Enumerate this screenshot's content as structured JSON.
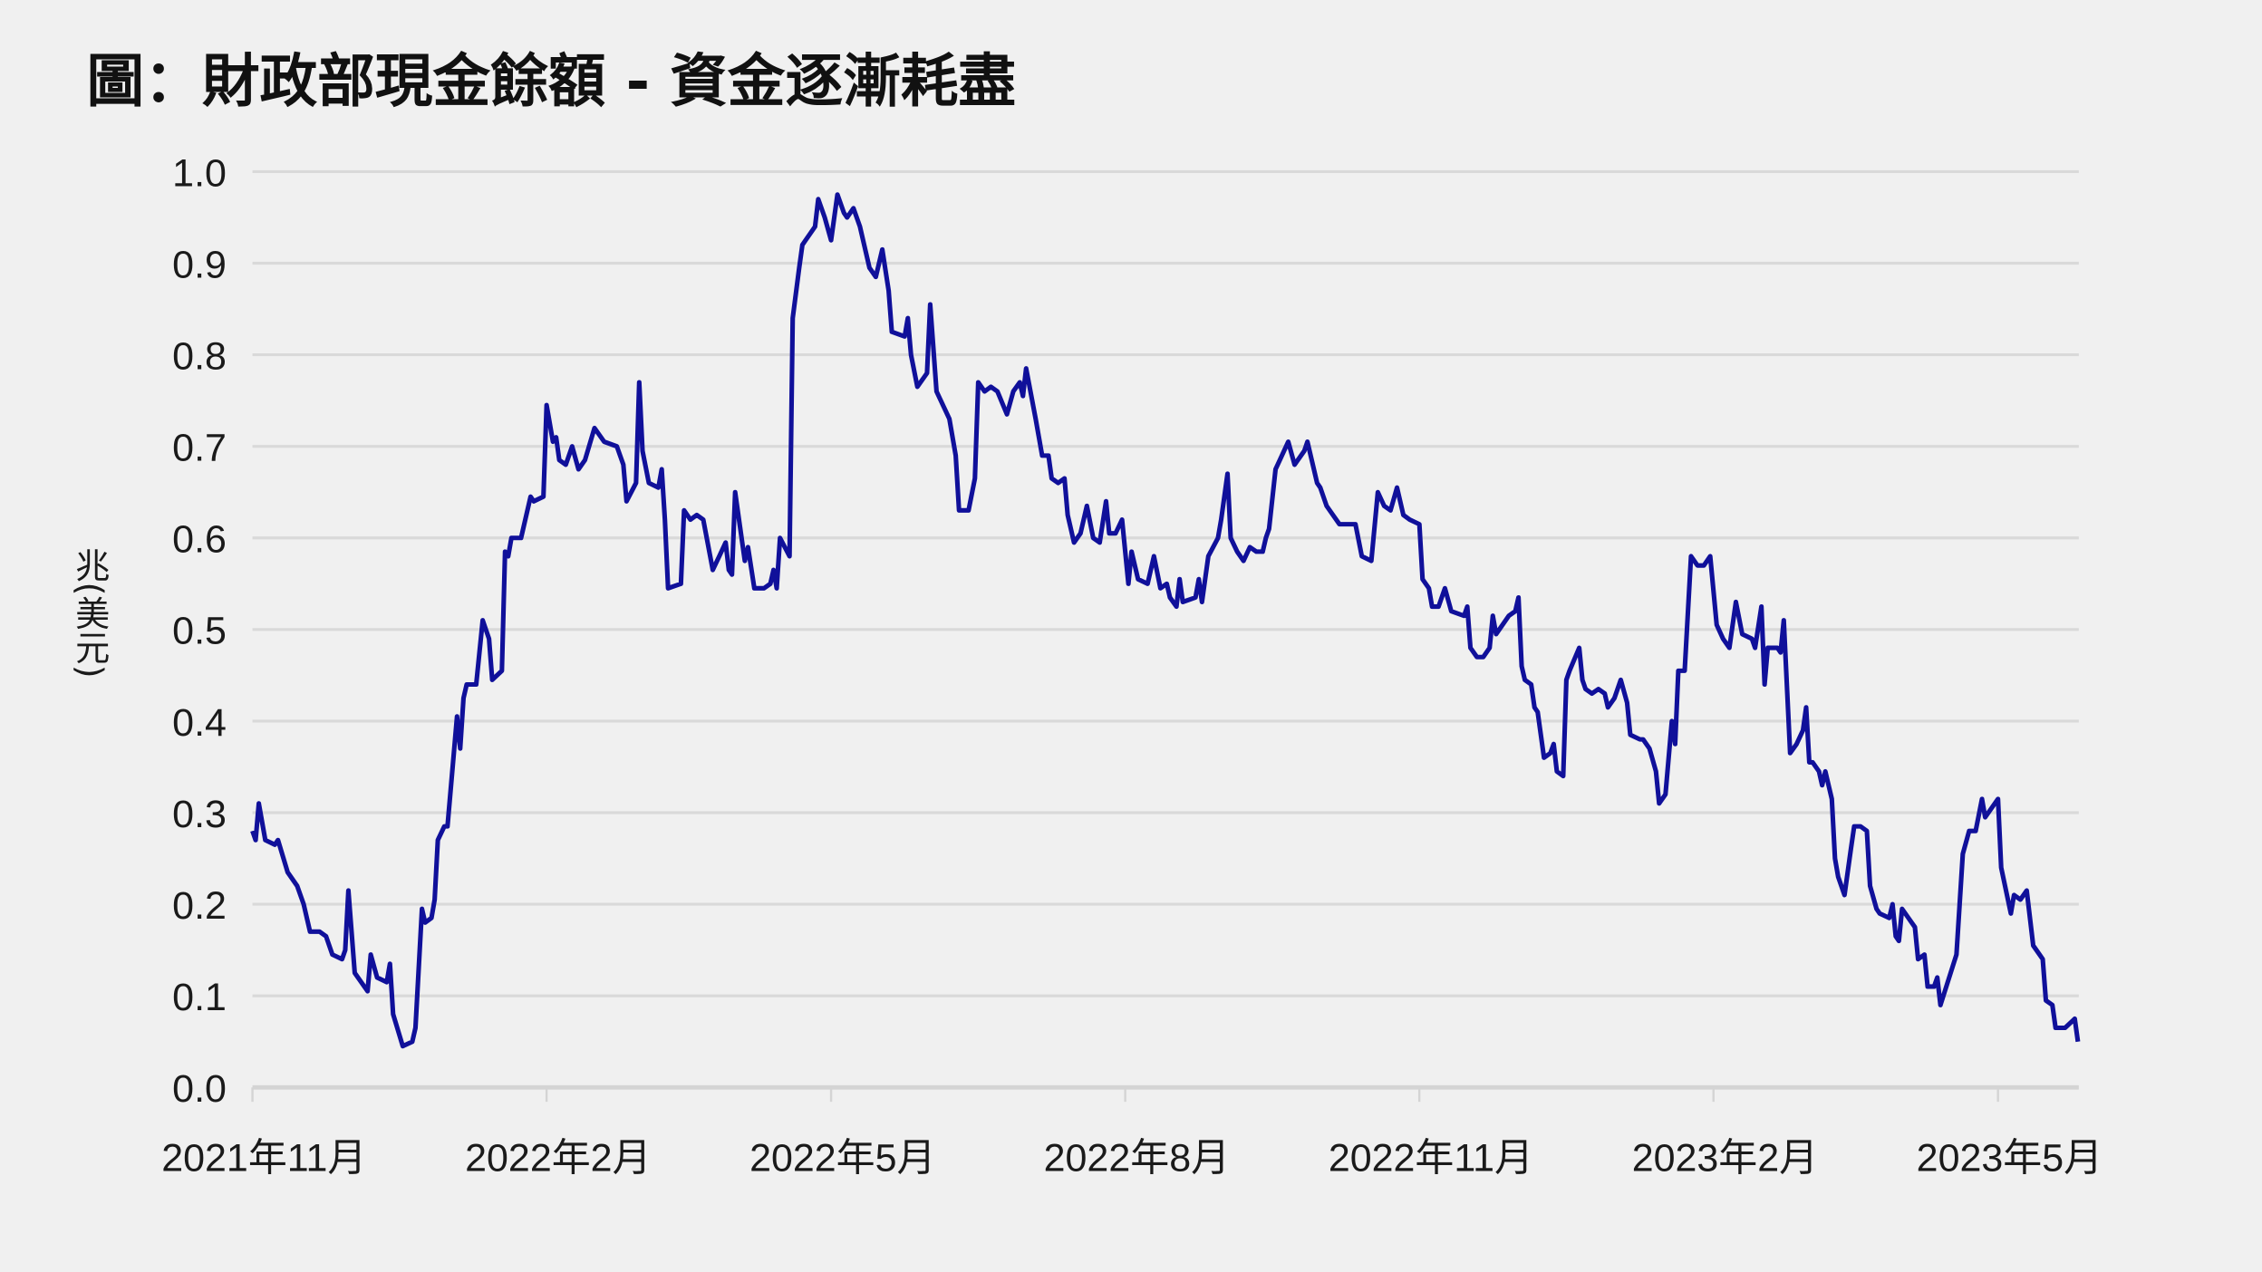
{
  "chart_data": {
    "type": "line",
    "title": "圖：財政部現金餘額 - 資金逐漸耗盡",
    "xlabel": "",
    "ylabel": "兆(美元)",
    "ylim": [
      0,
      1.0
    ],
    "yticks": [
      "0.0",
      "0.1",
      "0.2",
      "0.3",
      "0.4",
      "0.5",
      "0.6",
      "0.7",
      "0.8",
      "0.9",
      "1.0"
    ],
    "xlim": [
      "2021-11-01",
      "2023-05-26"
    ],
    "xticks": [
      {
        "date": "2021-11-01",
        "label": "2021年11月"
      },
      {
        "date": "2022-02-01",
        "label": "2022年2月"
      },
      {
        "date": "2022-05-01",
        "label": "2022年5月"
      },
      {
        "date": "2022-08-01",
        "label": "2022年8月"
      },
      {
        "date": "2022-11-01",
        "label": "2022年11月"
      },
      {
        "date": "2023-02-01",
        "label": "2023年2月"
      },
      {
        "date": "2023-05-01",
        "label": "2023年5月"
      }
    ],
    "grid": "horizontal",
    "legend": "none",
    "colors": {
      "line": "#10109a",
      "grid": "#d9d9d9",
      "axis": "#d4d4d4",
      "background": "#f0f0f0"
    },
    "series": [
      {
        "x": [
          "2021-11-01",
          "2021-11-02",
          "2021-11-03",
          "2021-11-05",
          "2021-11-08",
          "2021-11-09",
          "2021-11-12",
          "2021-11-15",
          "2021-11-17",
          "2021-11-19",
          "2021-11-22",
          "2021-11-24",
          "2021-11-26",
          "2021-11-29",
          "2021-11-30",
          "2021-12-01",
          "2021-12-03",
          "2021-12-07",
          "2021-12-08",
          "2021-12-10",
          "2021-12-13",
          "2021-12-14",
          "2021-12-15",
          "2021-12-18",
          "2021-12-21",
          "2021-12-22",
          "2021-12-24",
          "2021-12-25",
          "2021-12-27",
          "2021-12-28",
          "2021-12-29",
          "2021-12-31",
          "2022-01-01",
          "2022-01-04",
          "2022-01-05",
          "2022-01-06",
          "2022-01-07",
          "2022-01-10",
          "2022-01-12",
          "2022-01-14",
          "2022-01-15",
          "2022-01-18",
          "2022-01-19",
          "2022-01-20",
          "2022-01-21",
          "2022-01-24",
          "2022-01-27",
          "2022-01-28",
          "2022-01-31",
          "2022-02-01",
          "2022-02-03",
          "2022-02-04",
          "2022-02-05",
          "2022-02-07",
          "2022-02-09",
          "2022-02-11",
          "2022-02-13",
          "2022-02-16",
          "2022-02-19",
          "2022-02-23",
          "2022-02-25",
          "2022-02-26",
          "2022-03-01",
          "2022-03-02",
          "2022-03-03",
          "2022-03-05",
          "2022-03-08",
          "2022-03-09",
          "2022-03-10",
          "2022-03-11",
          "2022-03-15",
          "2022-03-16",
          "2022-03-18",
          "2022-03-20",
          "2022-03-22",
          "2022-03-25",
          "2022-03-27",
          "2022-03-29",
          "2022-03-30",
          "2022-03-31",
          "2022-04-01",
          "2022-04-04",
          "2022-04-05",
          "2022-04-07",
          "2022-04-10",
          "2022-04-12",
          "2022-04-13",
          "2022-04-14",
          "2022-04-15",
          "2022-04-18",
          "2022-04-19",
          "2022-04-21",
          "2022-04-22",
          "2022-04-26",
          "2022-04-27",
          "2022-04-29",
          "2022-05-01",
          "2022-05-03",
          "2022-05-05",
          "2022-05-06",
          "2022-05-08",
          "2022-05-10",
          "2022-05-13",
          "2022-05-15",
          "2022-05-17",
          "2022-05-19",
          "2022-05-20",
          "2022-05-24",
          "2022-05-25",
          "2022-05-26",
          "2022-05-28",
          "2022-05-31",
          "2022-06-01",
          "2022-06-03",
          "2022-06-07",
          "2022-06-09",
          "2022-06-10",
          "2022-06-13",
          "2022-06-15",
          "2022-06-16",
          "2022-06-18",
          "2022-06-20",
          "2022-06-22",
          "2022-06-25",
          "2022-06-27",
          "2022-06-29",
          "2022-06-30",
          "2022-07-01",
          "2022-07-04",
          "2022-07-06",
          "2022-07-08",
          "2022-07-09",
          "2022-07-11",
          "2022-07-13",
          "2022-07-14",
          "2022-07-16",
          "2022-07-18",
          "2022-07-20",
          "2022-07-22",
          "2022-07-24",
          "2022-07-26",
          "2022-07-27",
          "2022-07-29",
          "2022-07-31",
          "2022-08-02",
          "2022-08-03",
          "2022-08-05",
          "2022-08-08",
          "2022-08-10",
          "2022-08-12",
          "2022-08-14",
          "2022-08-15",
          "2022-08-17",
          "2022-08-18",
          "2022-08-19",
          "2022-08-23",
          "2022-08-24",
          "2022-08-25",
          "2022-08-27",
          "2022-08-30",
          "2022-08-31",
          "2022-09-02",
          "2022-09-03",
          "2022-09-05",
          "2022-09-07",
          "2022-09-09",
          "2022-09-11",
          "2022-09-13",
          "2022-09-14",
          "2022-09-15",
          "2022-09-17",
          "2022-09-19",
          "2022-09-21",
          "2022-09-23",
          "2022-09-26",
          "2022-09-27",
          "2022-09-30",
          "2022-10-01",
          "2022-10-03",
          "2022-10-05",
          "2022-10-07",
          "2022-10-10",
          "2022-10-12",
          "2022-10-14",
          "2022-10-17",
          "2022-10-19",
          "2022-10-21",
          "2022-10-23",
          "2022-10-25",
          "2022-10-27",
          "2022-10-29",
          "2022-11-01",
          "2022-11-02",
          "2022-11-04",
          "2022-11-05",
          "2022-11-07",
          "2022-11-09",
          "2022-11-11",
          "2022-11-15",
          "2022-11-16",
          "2022-11-17",
          "2022-11-19",
          "2022-11-21",
          "2022-11-23",
          "2022-11-24",
          "2022-11-25",
          "2022-11-29",
          "2022-12-01",
          "2022-12-02",
          "2022-12-03",
          "2022-12-04",
          "2022-12-06",
          "2022-12-07",
          "2022-12-08",
          "2022-12-10",
          "2022-12-12",
          "2022-12-13",
          "2022-12-14",
          "2022-12-16",
          "2022-12-17",
          "2022-12-18",
          "2022-12-21",
          "2022-12-22",
          "2022-12-23",
          "2022-12-25",
          "2022-12-27",
          "2022-12-29",
          "2022-12-30",
          "2023-01-01",
          "2023-01-03",
          "2023-01-05",
          "2023-01-06",
          "2023-01-09",
          "2023-01-10",
          "2023-01-12",
          "2023-01-14",
          "2023-01-15",
          "2023-01-17",
          "2023-01-19",
          "2023-01-20",
          "2023-01-21",
          "2023-01-23",
          "2023-01-25",
          "2023-01-27",
          "2023-01-29",
          "2023-01-31",
          "2023-02-02",
          "2023-02-04",
          "2023-02-06",
          "2023-02-08",
          "2023-02-10",
          "2023-02-13",
          "2023-02-14",
          "2023-02-16",
          "2023-02-17",
          "2023-02-18",
          "2023-02-21",
          "2023-02-22",
          "2023-02-23",
          "2023-02-25",
          "2023-02-27",
          "2023-03-01",
          "2023-03-02",
          "2023-03-03",
          "2023-03-04",
          "2023-03-06",
          "2023-03-07",
          "2023-03-08",
          "2023-03-10",
          "2023-03-11",
          "2023-03-12",
          "2023-03-14",
          "2023-03-16",
          "2023-03-17",
          "2023-03-19",
          "2023-03-21",
          "2023-03-22",
          "2023-03-24",
          "2023-03-25",
          "2023-03-28",
          "2023-03-29",
          "2023-03-30",
          "2023-03-31",
          "2023-04-01",
          "2023-04-03",
          "2023-04-05",
          "2023-04-06",
          "2023-04-08",
          "2023-04-09",
          "2023-04-11",
          "2023-04-12",
          "2023-04-13",
          "2023-04-18",
          "2023-04-20",
          "2023-04-22",
          "2023-04-24",
          "2023-04-26",
          "2023-04-27",
          "2023-04-30",
          "2023-05-01",
          "2023-05-02",
          "2023-05-05",
          "2023-05-06",
          "2023-05-08",
          "2023-05-10",
          "2023-05-12",
          "2023-05-14",
          "2023-05-15",
          "2023-05-16",
          "2023-05-18",
          "2023-05-19",
          "2023-05-22",
          "2023-05-25",
          "2023-05-26"
        ],
        "y": [
          0.28,
          0.27,
          0.31,
          0.27,
          0.265,
          0.27,
          0.235,
          0.22,
          0.2,
          0.17,
          0.17,
          0.165,
          0.145,
          0.14,
          0.15,
          0.215,
          0.125,
          0.105,
          0.145,
          0.12,
          0.115,
          0.135,
          0.08,
          0.045,
          0.05,
          0.065,
          0.195,
          0.18,
          0.185,
          0.205,
          0.27,
          0.285,
          0.285,
          0.405,
          0.37,
          0.425,
          0.44,
          0.44,
          0.51,
          0.49,
          0.445,
          0.455,
          0.585,
          0.58,
          0.6,
          0.6,
          0.645,
          0.64,
          0.645,
          0.745,
          0.705,
          0.71,
          0.685,
          0.68,
          0.7,
          0.675,
          0.685,
          0.72,
          0.705,
          0.7,
          0.68,
          0.64,
          0.66,
          0.77,
          0.695,
          0.66,
          0.655,
          0.675,
          0.62,
          0.545,
          0.55,
          0.63,
          0.62,
          0.625,
          0.62,
          0.565,
          0.58,
          0.595,
          0.565,
          0.56,
          0.65,
          0.575,
          0.59,
          0.545,
          0.545,
          0.55,
          0.565,
          0.545,
          0.6,
          0.58,
          0.84,
          0.895,
          0.92,
          0.94,
          0.97,
          0.95,
          0.925,
          0.975,
          0.955,
          0.95,
          0.96,
          0.94,
          0.895,
          0.885,
          0.915,
          0.87,
          0.825,
          0.82,
          0.84,
          0.8,
          0.765,
          0.78,
          0.855,
          0.76,
          0.73,
          0.69,
          0.63,
          0.63,
          0.665,
          0.77,
          0.76,
          0.765,
          0.76,
          0.735,
          0.76,
          0.77,
          0.755,
          0.785,
          0.73,
          0.69,
          0.69,
          0.665,
          0.66,
          0.665,
          0.625,
          0.595,
          0.605,
          0.635,
          0.6,
          0.595,
          0.64,
          0.605,
          0.605,
          0.62,
          0.55,
          0.585,
          0.555,
          0.55,
          0.58,
          0.545,
          0.55,
          0.535,
          0.525,
          0.555,
          0.53,
          0.535,
          0.555,
          0.53,
          0.58,
          0.6,
          0.62,
          0.67,
          0.6,
          0.585,
          0.575,
          0.59,
          0.585,
          0.585,
          0.6,
          0.61,
          0.675,
          0.69,
          0.705,
          0.68,
          0.695,
          0.705,
          0.66,
          0.655,
          0.635,
          0.625,
          0.615,
          0.615,
          0.615,
          0.58,
          0.575,
          0.65,
          0.635,
          0.63,
          0.655,
          0.625,
          0.62,
          0.615,
          0.555,
          0.545,
          0.525,
          0.525,
          0.545,
          0.52,
          0.515,
          0.525,
          0.48,
          0.47,
          0.47,
          0.48,
          0.515,
          0.495,
          0.515,
          0.52,
          0.535,
          0.46,
          0.445,
          0.44,
          0.415,
          0.41,
          0.36,
          0.365,
          0.375,
          0.345,
          0.34,
          0.445,
          0.455,
          0.48,
          0.445,
          0.435,
          0.43,
          0.435,
          0.43,
          0.415,
          0.425,
          0.445,
          0.42,
          0.385,
          0.38,
          0.38,
          0.37,
          0.345,
          0.31,
          0.32,
          0.4,
          0.375,
          0.455,
          0.455,
          0.58,
          0.57,
          0.57,
          0.58,
          0.505,
          0.49,
          0.48,
          0.53,
          0.495,
          0.49,
          0.48,
          0.525,
          0.44,
          0.48,
          0.48,
          0.475,
          0.51,
          0.365,
          0.375,
          0.39,
          0.415,
          0.355,
          0.355,
          0.345,
          0.33,
          0.345,
          0.315,
          0.25,
          0.23,
          0.21,
          0.26,
          0.285,
          0.285,
          0.28,
          0.22,
          0.195,
          0.19,
          0.185,
          0.2,
          0.165,
          0.16,
          0.195,
          0.185,
          0.175,
          0.14,
          0.145,
          0.11,
          0.11,
          0.12,
          0.09,
          0.145,
          0.255,
          0.28,
          0.28,
          0.315,
          0.295,
          0.31,
          0.315,
          0.24,
          0.19,
          0.21,
          0.205,
          0.215,
          0.155,
          0.145,
          0.14,
          0.095,
          0.09,
          0.065,
          0.065,
          0.075,
          0.05
        ]
      }
    ]
  }
}
